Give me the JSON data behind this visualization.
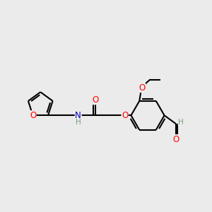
{
  "bg_color": "#ebebeb",
  "bond_color": "#000000",
  "bond_width": 1.5,
  "atom_colors": {
    "O": "#ff0000",
    "N": "#0000cc",
    "C": "#000000",
    "H": "#7a9a7a"
  },
  "font_size": 8.5,
  "fig_size": [
    3.0,
    3.0
  ],
  "dpi": 100
}
